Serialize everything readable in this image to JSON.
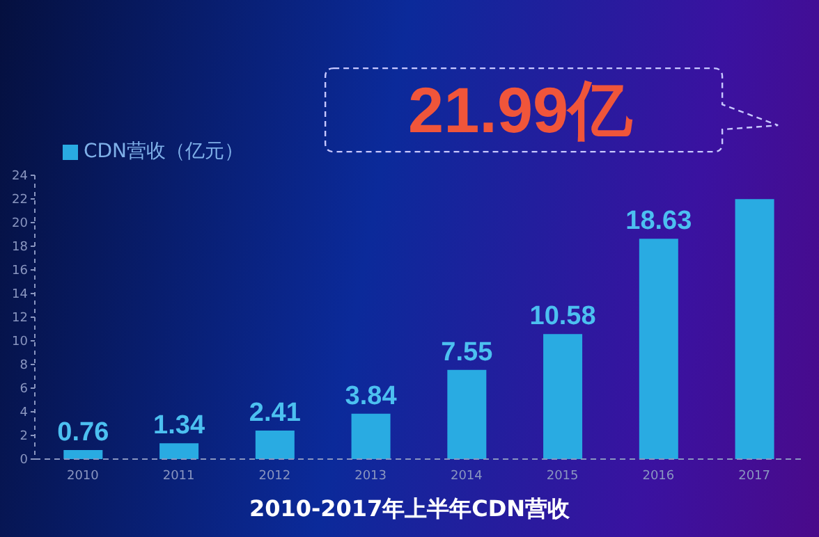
{
  "chart_data": {
    "type": "bar",
    "title": "2010-2017年上半年CDN营收",
    "categories": [
      "2010",
      "2011",
      "2012",
      "2013",
      "2014",
      "2015",
      "2016",
      "2017"
    ],
    "series": [
      {
        "name": "CDN营收（亿元）",
        "color": "#29abe2",
        "values": [
          0.76,
          1.34,
          2.41,
          3.84,
          7.55,
          10.58,
          18.63,
          21.99
        ],
        "value_labels": [
          "0.76",
          "1.34",
          "2.41",
          "3.84",
          "7.55",
          "10.58",
          "18.63",
          null
        ]
      }
    ],
    "ylim": [
      0,
      24
    ],
    "yticks": [
      0,
      2,
      4,
      6,
      8,
      10,
      12,
      14,
      16,
      18,
      20,
      22,
      24
    ],
    "grid": false,
    "legend": "top left",
    "annotations": [
      {
        "text": "21.99亿",
        "x": "2017",
        "y": 21.99
      }
    ]
  }
}
